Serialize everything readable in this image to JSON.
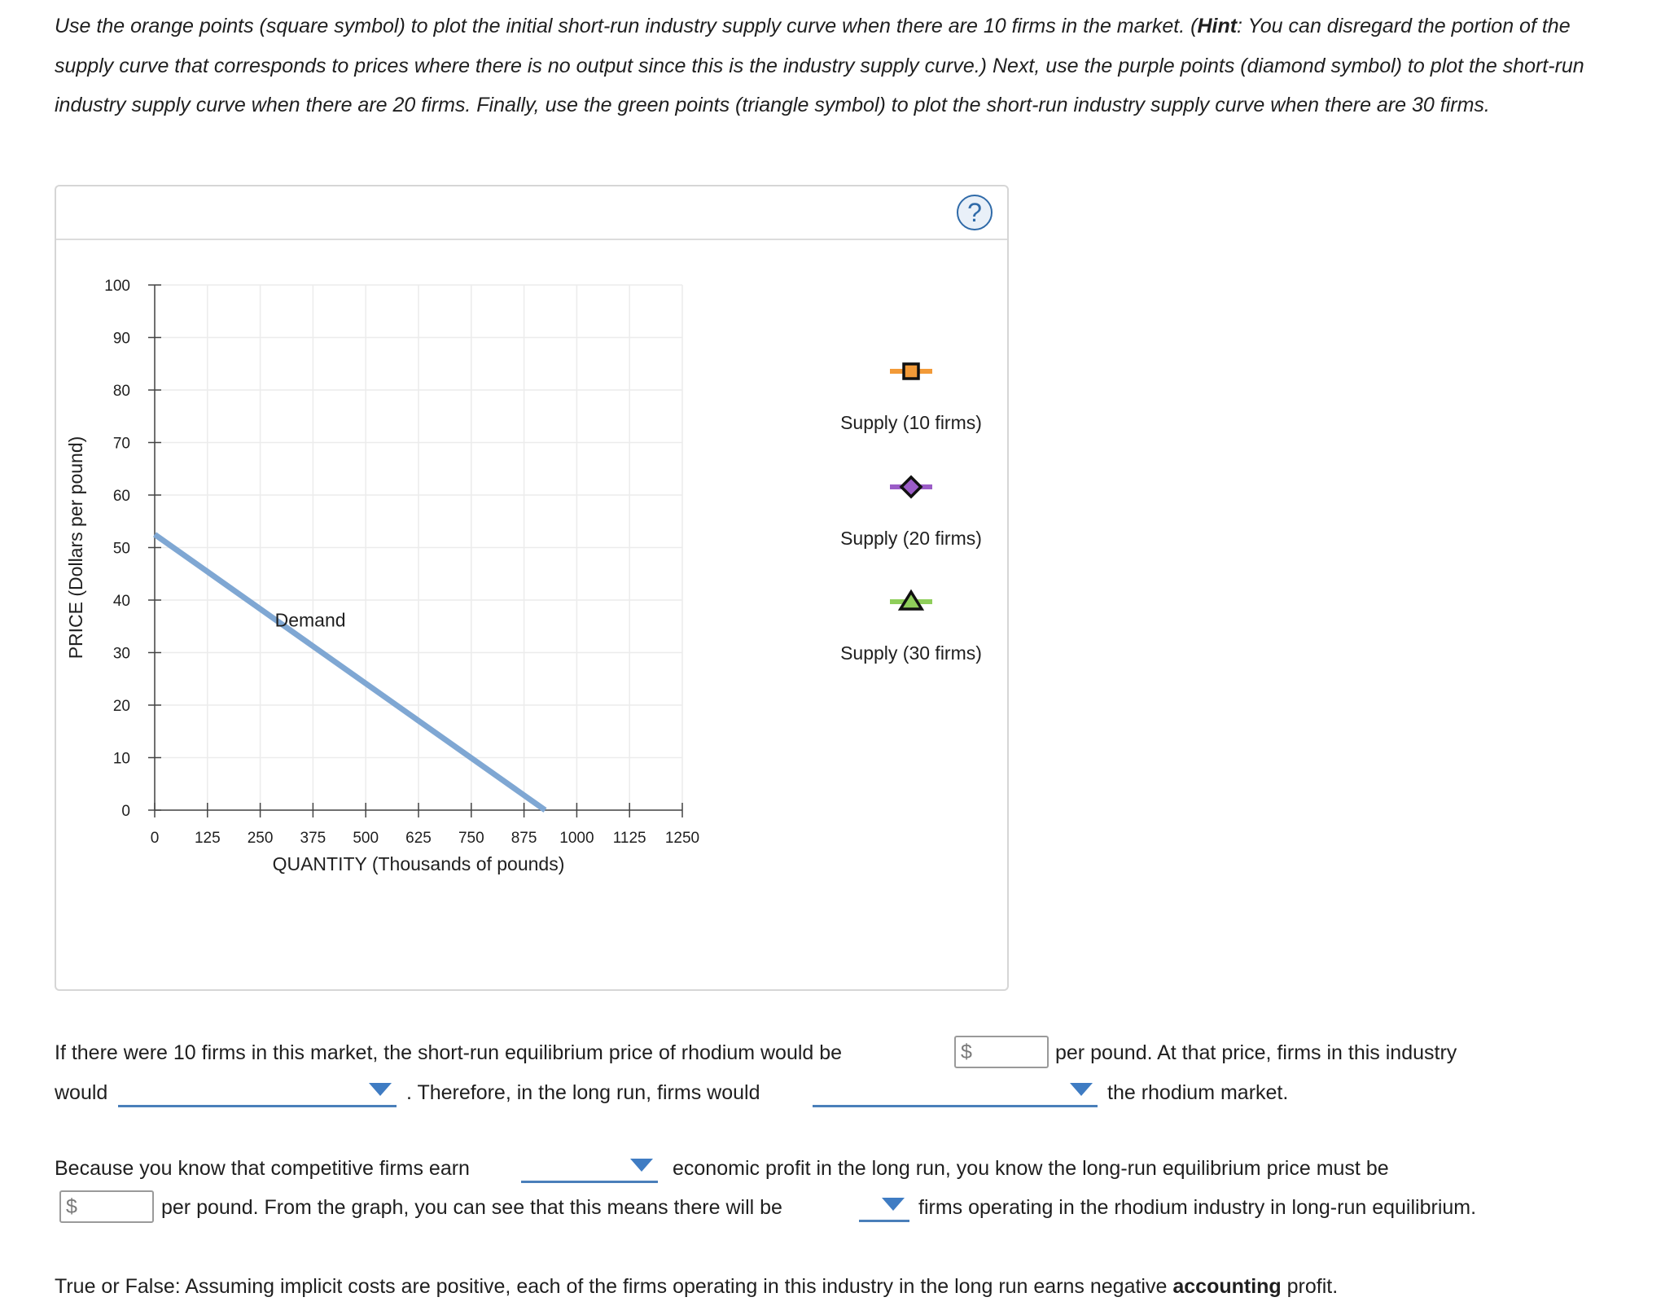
{
  "instructions": {
    "part1": "Use the orange points (square symbol) to plot the initial short-run industry supply curve when there are 10 firms in the market. (",
    "hint_label": "Hint",
    "part2": ": You can disregard the portion of the supply curve that corresponds to prices where there is no output since this is the industry supply curve.) Next, use the purple points (diamond symbol) to plot the short-run industry supply curve when there are 20 firms. Finally, use the green points (triangle symbol) to plot the short-run industry supply curve when there are 30 firms."
  },
  "graph": {
    "help_label": "?",
    "palette": [
      {
        "name": "Supply (10 firms)",
        "color": "#f29a38",
        "marker": "square"
      },
      {
        "name": "Supply (20 firms)",
        "color": "#9b5cc7",
        "marker": "diamond"
      },
      {
        "name": "Supply (30 firms)",
        "color": "#8fce5a",
        "marker": "triangle"
      }
    ]
  },
  "chart_data": {
    "type": "line",
    "xlabel": "QUANTITY (Thousands of pounds)",
    "ylabel": "PRICE (Dollars per pound)",
    "xlim": [
      0,
      1250
    ],
    "ylim": [
      0,
      100
    ],
    "xticks": [
      0,
      125,
      250,
      375,
      500,
      625,
      750,
      875,
      1000,
      1125,
      1250
    ],
    "yticks": [
      0,
      10,
      20,
      30,
      40,
      50,
      60,
      70,
      80,
      90,
      100
    ],
    "grid": true,
    "series": [
      {
        "name": "Demand",
        "color": "#7fa7d3",
        "x": [
          0,
          925
        ],
        "y": [
          52.5,
          0
        ]
      }
    ]
  },
  "questions": {
    "q1_a": "If there were 10 firms in this market, the short-run equilibrium price of rhodium would be",
    "dollar": "$",
    "q1_b": "per pound. At that price, firms in this industry",
    "q1_c": "would",
    "q1_d": ". Therefore, in the long run, firms would",
    "q1_e": "the rhodium market.",
    "q2_a": "Because you know that competitive firms earn",
    "q2_b": "economic profit in the long run, you know the long-run equilibrium price must be",
    "q2_c": "per pound. From the graph, you can see that this means there will be",
    "q2_d": "firms operating in the rhodium industry in long-run equilibrium.",
    "q3_a": "True or False: Assuming implicit costs are positive, each of the firms operating in this industry in the long run earns negative",
    "q3_bold": "accounting",
    "q3_b": "profit."
  }
}
